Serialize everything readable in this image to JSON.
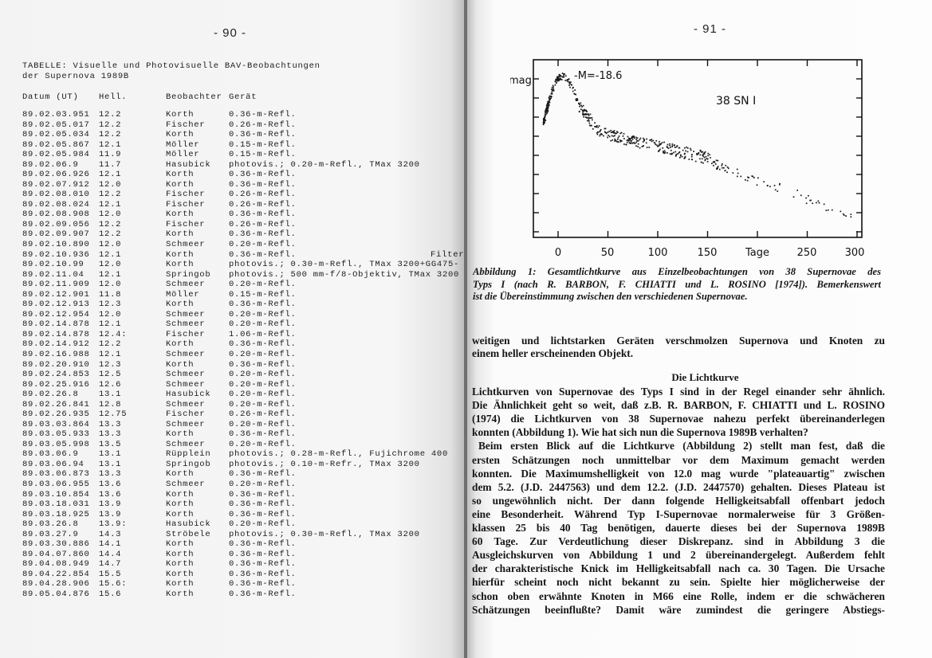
{
  "left_page": {
    "page_number": "- 90 -",
    "table_title_line1": "TABELLE: Visuelle und Photovisuelle BAV-Beobachtungen",
    "table_title_line2": "der Supernova 1989B",
    "columns": [
      "Datum (UT)",
      "Hell.",
      "Beobachter",
      "Gerät"
    ],
    "rows": [
      {
        "datum": "89.02.03.951",
        "hell": "12.2",
        "beobachter": "Korth",
        "geraet": "0.36-m-Refl."
      },
      {
        "datum": "89.02.05.017",
        "hell": "12.2",
        "beobachter": "Fischer",
        "geraet": "0.26-m-Refl."
      },
      {
        "datum": "89.02.05.034",
        "hell": "12.2",
        "beobachter": "Korth",
        "geraet": "0.36-m-Refl."
      },
      {
        "datum": "89.02.05.867",
        "hell": "12.1",
        "beobachter": "Möller",
        "geraet": "0.15-m-Refl."
      },
      {
        "datum": "89.02.05.984",
        "hell": "11.9",
        "beobachter": "Möller",
        "geraet": "0.15-m-Refl."
      },
      {
        "datum": "89.02.06.9",
        "hell": "11.7",
        "beobachter": "Hasubick",
        "geraet": "photovis.; 0.20-m-Refl., TMax 3200"
      },
      {
        "datum": "89.02.06.926",
        "hell": "12.1",
        "beobachter": "Korth",
        "geraet": "0.36-m-Refl."
      },
      {
        "datum": "89.02.07.912",
        "hell": "12.0",
        "beobachter": "Korth",
        "geraet": "0.36-m-Refl."
      },
      {
        "datum": "89.02.08.010",
        "hell": "12.2",
        "beobachter": "Fischer",
        "geraet": "0.26-m-Refl."
      },
      {
        "datum": "89.02.08.024",
        "hell": "12.1",
        "beobachter": "Fischer",
        "geraet": "0.26-m-Refl."
      },
      {
        "datum": "89.02.08.908",
        "hell": "12.0",
        "beobachter": "Korth",
        "geraet": "0.36-m-Refl."
      },
      {
        "datum": "89.02.09.056",
        "hell": "12.2",
        "beobachter": "Fischer",
        "geraet": "0.26-m-Refl."
      },
      {
        "datum": "89.02.09.907",
        "hell": "12.2",
        "beobachter": "Korth",
        "geraet": "0.36-m-Refl."
      },
      {
        "datum": "89.02.10.890",
        "hell": "12.0",
        "beobachter": "Schmeer",
        "geraet": "0.20-m-Refl."
      },
      {
        "datum": "89.02.10.936",
        "hell": "12.1",
        "beobachter": "Korth",
        "geraet": "0.36-m-Refl.",
        "note": "Filter"
      },
      {
        "datum": "89.02.10.99",
        "hell": "12.0",
        "beobachter": "Korth",
        "geraet": "photovis.; 0.30-m-Refl., TMax 3200+GG475-"
      },
      {
        "datum": "89.02.11.04",
        "hell": "12.1",
        "beobachter": "Springob",
        "geraet": "photovis.; 500 mm-f/8-Objektiv, TMax 3200"
      },
      {
        "datum": "89.02.11.909",
        "hell": "12.0",
        "beobachter": "Schmeer",
        "geraet": "0.20-m-Refl."
      },
      {
        "datum": "89.02.12.901",
        "hell": "11.8",
        "beobachter": "Möller",
        "geraet": "0.15-m-Refl."
      },
      {
        "datum": "89.02.12.913",
        "hell": "12.3",
        "beobachter": "Korth",
        "geraet": "0.36-m-Refl."
      },
      {
        "datum": "89.02.12.954",
        "hell": "12.0",
        "beobachter": "Schmeer",
        "geraet": "0.20-m-Refl."
      },
      {
        "datum": "89.02.14.878",
        "hell": "12.1",
        "beobachter": "Schmeer",
        "geraet": "0.20-m-Refl."
      },
      {
        "datum": "89.02.14.878",
        "hell": "12.4:",
        "beobachter": "Fischer",
        "geraet": "1.06-m-Refl."
      },
      {
        "datum": "89.02.14.912",
        "hell": "12.2",
        "beobachter": "Korth",
        "geraet": "0.36-m-Refl."
      },
      {
        "datum": "89.02.16.988",
        "hell": "12.1",
        "beobachter": "Schmeer",
        "geraet": "0.20-m-Refl."
      },
      {
        "datum": "89.02.20.910",
        "hell": "12.3",
        "beobachter": "Korth",
        "geraet": "0.36-m-Refl."
      },
      {
        "datum": "89.02.24.853",
        "hell": "12.5",
        "beobachter": "Schmeer",
        "geraet": "0.20-m-Refl."
      },
      {
        "datum": "89.02.25.916",
        "hell": "12.6",
        "beobachter": "Schmeer",
        "geraet": "0.20-m-Refl."
      },
      {
        "datum": "89.02.26.8",
        "hell": "13.1",
        "beobachter": "Hasubick",
        "geraet": "0.20-m-Refl."
      },
      {
        "datum": "89.02.26.841",
        "hell": "12.8",
        "beobachter": "Schmeer",
        "geraet": "0.20-m-Refl."
      },
      {
        "datum": "89.02.26.935",
        "hell": "12.75",
        "beobachter": "Fischer",
        "geraet": "0.26-m-Refl."
      },
      {
        "datum": "89.03.03.864",
        "hell": "13.3",
        "beobachter": "Schmeer",
        "geraet": "0.20-m-Refl."
      },
      {
        "datum": "89.03.05.933",
        "hell": "13.3",
        "beobachter": "Korth",
        "geraet": "0.36-m-Refl."
      },
      {
        "datum": "89.03.05.998",
        "hell": "13.5",
        "beobachter": "Schmeer",
        "geraet": "0.20-m-Refl."
      },
      {
        "datum": "89.03.06.9",
        "hell": "13.1",
        "beobachter": "Rüpplein",
        "geraet": "photovis.; 0.28-m-Refl., Fujichrome 400"
      },
      {
        "datum": "89.03.06.94",
        "hell": "13.1",
        "beobachter": "Springob",
        "geraet": "photovis.; 0.10-m-Refr., TMax 3200"
      },
      {
        "datum": "89.03.06.873",
        "hell": "13.3",
        "beobachter": "Korth",
        "geraet": "0.36-m-Refl."
      },
      {
        "datum": "89.03.06.955",
        "hell": "13.6",
        "beobachter": "Schmeer",
        "geraet": "0.20-m-Refl."
      },
      {
        "datum": "89.03.10.854",
        "hell": "13.6",
        "beobachter": "Korth",
        "geraet": "0.36-m-Refl."
      },
      {
        "datum": "89.03.18.031",
        "hell": "13.9",
        "beobachter": "Korth",
        "geraet": "0.36-m-Refl."
      },
      {
        "datum": "89.03.18.925",
        "hell": "13.9",
        "beobachter": "Korth",
        "geraet": "0.36-m-Refl."
      },
      {
        "datum": "89.03.26.8",
        "hell": "13.9:",
        "beobachter": "Hasubick",
        "geraet": "0.20-m-Refl."
      },
      {
        "datum": "89.03.27.9",
        "hell": "14.3",
        "beobachter": "Ströbele",
        "geraet": "photovis.; 0.30-m-Refl., TMax 3200"
      },
      {
        "datum": "89.03.30.886",
        "hell": "14.1",
        "beobachter": "Korth",
        "geraet": "0.36-m-Refl."
      },
      {
        "datum": "89.04.07.860",
        "hell": "14.4",
        "beobachter": "Korth",
        "geraet": "0.36-m-Refl."
      },
      {
        "datum": "89.04.08.949",
        "hell": "14.7",
        "beobachter": "Korth",
        "geraet": "0.36-m-Refl."
      },
      {
        "datum": "89.04.22.854",
        "hell": "15.5",
        "beobachter": "Korth",
        "geraet": "0.36-m-Refl."
      },
      {
        "datum": "89.04.28.906",
        "hell": "15.6:",
        "beobachter": "Korth",
        "geraet": "0.36-m-Refl."
      },
      {
        "datum": "89.05.04.876",
        "hell": "15.6",
        "beobachter": "Korth",
        "geraet": "0.36-m-Refl."
      }
    ]
  },
  "right_page": {
    "page_number": "- 91 -",
    "figure": {
      "ylabel": "mag",
      "annotation_m": "-M=-18.6",
      "annotation_sn": "38 SN I",
      "xlabel": "Tage",
      "x_ticks": [
        "0",
        "50",
        "100",
        "150",
        "250",
        "300"
      ]
    },
    "caption_lines": [
      "Abbildung 1: Gesamtlichtkurve aus Einzelbeobachtungen von 38 Supernovae des",
      "Typs I (nach R. BARBON, F. CHIATTI und L. ROSINO [1974]). Bemerkenswert",
      "ist die Übereinstimmung zwischen den verschiedenen Supernovae."
    ],
    "intro_lines": [
      "weitigen und lichtstarken Geräten verschmolzen Supernova und Knoten zu",
      "einem heller erscheinenden Objekt."
    ],
    "section_heading": "Die Lichtkurve",
    "body_lines": [
      "Lichtkurven von Supernovae des Typs I sind in der Regel einander sehr ähnlich.",
      "Die Ähnlichkeit geht so weit, daß z.B. R. BARBON, F. CHIATTI und L. ROSINO",
      "(1974) die Lichtkurven von 38 Supernovae nahezu perfekt übereinanderlegen",
      "konnten (Abbildung 1). Wie hat sich nun die Supernova 1989B verhalten?",
      "Beim ersten Blick auf die Lichtkurve (Abbildung 2) stellt man fest, daß die",
      "ersten Schätzungen noch unmittelbar vor dem Maximum gemacht werden",
      "konnten. Die Maximumshelligkeit von 12.0 mag wurde \"plateauartig\" zwischen",
      "dem 5.2. (J.D. 2447563) und dem 12.2. (J.D. 2447570) gehalten. Dieses Plateau ist",
      "so ungewöhnlich nicht. Der dann folgende Helligkeitsabfall offenbart jedoch",
      "eine Besonderheit. Während Typ I-Supernovae normalerweise für 3 Größen-",
      "klassen 25 bis 40 Tag benötigen, dauerte dieses bei der Supernova 1989B",
      "60 Tage. Zur Verdeutlichung dieser Diskrepanz. sind in Abbildung 3 die",
      "Ausgleichskurven von Abbildung 1 und 2 übereinandergelegt. Außerdem fehlt",
      "der charakteristische Knick im Helligkeitsabfall nach ca. 30 Tagen. Die Ursache",
      "hierfür scheint noch nicht bekannt zu sein. Spielte hier möglicherweise der",
      "schon oben erwähnte Knoten in M66 eine Rolle, indem er die schwächeren",
      "Schätzungen beeinflußte? Damit wäre zumindest die geringere Abstiegs-"
    ]
  }
}
